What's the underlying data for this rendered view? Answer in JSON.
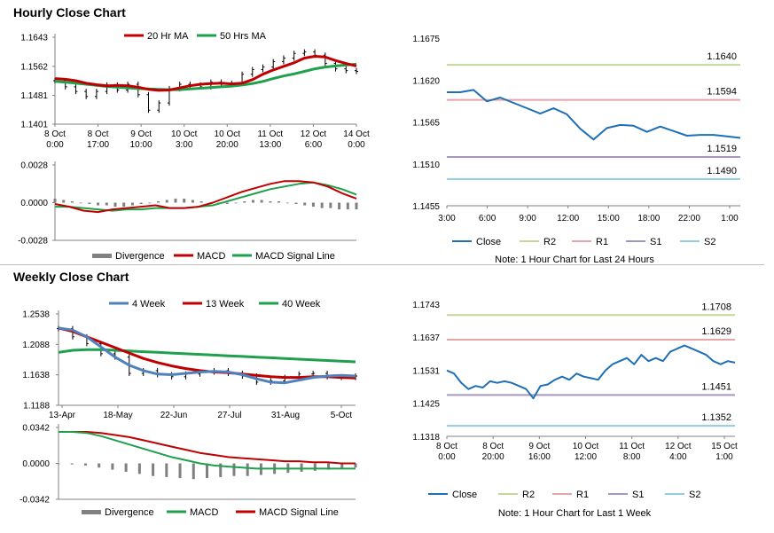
{
  "titles": {
    "hourly": "Hourly Close Chart",
    "weekly": "Weekly Close Chart"
  },
  "colors": {
    "red": "#c00000",
    "green": "#1ea04c",
    "blue": "#4f81bd",
    "close": "#1f6fb4",
    "r2": "#c4d79b",
    "r1": "#e6a5a8",
    "s1": "#a795c2",
    "s2": "#93cddd",
    "divergence": "#808080"
  },
  "chart_data": [
    {
      "id": "hourly-price",
      "type": "line",
      "x_tick_labels": [
        [
          "8 Oct",
          "0:00"
        ],
        [
          "8 Oct",
          "17:00"
        ],
        [
          "9 Oct",
          "10:00"
        ],
        [
          "10 Oct",
          "3:00"
        ],
        [
          "10 Oct",
          "20:00"
        ],
        [
          "11 Oct",
          "13:00"
        ],
        [
          "12 Oct",
          "6:00"
        ],
        [
          "14 Oct",
          "0:00"
        ]
      ],
      "y_tick_labels": [
        "1.1643",
        "1.1562",
        "1.1481",
        "1.1401"
      ],
      "ylim": [
        1.1401,
        1.1643
      ],
      "series": [
        {
          "name": "20 Hr MA",
          "color": "red",
          "values": [
            1.1528,
            1.1526,
            1.1522,
            1.1515,
            1.1511,
            1.1508,
            1.1509,
            1.1508,
            1.1504,
            1.1498,
            1.1495,
            1.1496,
            1.1502,
            1.1508,
            1.1512,
            1.1514,
            1.1515,
            1.1513,
            1.1515,
            1.1525,
            1.154,
            1.1552,
            1.1562,
            1.1572,
            1.1585,
            1.159,
            1.1588,
            1.1578,
            1.157,
            1.1563
          ]
        },
        {
          "name": "50 Hrs MA",
          "color": "green",
          "values": [
            1.152,
            1.1518,
            1.1515,
            1.1512,
            1.1509,
            1.1506,
            1.1504,
            1.1502,
            1.15,
            1.1499,
            1.1498,
            1.1497,
            1.1497,
            1.1499,
            1.1501,
            1.1503,
            1.1505,
            1.1507,
            1.151,
            1.1514,
            1.152,
            1.1528,
            1.1535,
            1.1541,
            1.1548,
            1.1555,
            1.156,
            1.1563,
            1.1566,
            1.1568
          ]
        },
        {
          "name": "Close",
          "type": "ohlc",
          "values": [
            1.1522,
            1.1505,
            1.1492,
            1.1478,
            1.1492,
            1.151,
            1.1496,
            1.1512,
            1.1483,
            1.144,
            1.146,
            1.15,
            1.1512,
            1.151,
            1.1505,
            1.1518,
            1.1512,
            1.1515,
            1.154,
            1.1553,
            1.156,
            1.1575,
            1.1585,
            1.1598,
            1.1602,
            1.1593,
            1.157,
            1.1555,
            1.155,
            1.1548
          ]
        }
      ]
    },
    {
      "id": "hourly-macd",
      "type": "line",
      "y_tick_labels": [
        "0.0028",
        "0.0000",
        "-0.0028"
      ],
      "ylim": [
        -0.0028,
        0.0028
      ],
      "series": [
        {
          "name": "Divergence",
          "color": "divergence",
          "type": "bar",
          "values": [
            0.0003,
            0.0002,
            0.0001,
            0.0,
            -0.0001,
            -0.0002,
            -0.0002,
            -0.0003,
            -0.0003,
            -0.0002,
            -0.0001,
            0.0,
            0.0001,
            0.0002,
            0.0003,
            0.0003,
            0.0002,
            0.0001,
            0.0,
            -0.0001,
            -0.0001,
            0.0,
            0.0001,
            0.0002,
            0.0002,
            0.0001,
            0.0001,
            0.0,
            -0.0001,
            -0.0002,
            -0.0003,
            -0.0004,
            -0.0004,
            -0.0005,
            -0.0005,
            -0.0005
          ]
        },
        {
          "name": "MACD",
          "color": "red",
          "values": [
            -0.0001,
            -0.0003,
            -0.0006,
            -0.0007,
            -0.0005,
            -0.0004,
            -0.0003,
            -0.0002,
            -0.0004,
            -0.0004,
            -0.0003,
            0.0,
            0.0004,
            0.0008,
            0.0011,
            0.0014,
            0.0016,
            0.0016,
            0.0015,
            0.0012,
            0.0007,
            0.0003
          ]
        },
        {
          "name": "MACD Signal Line",
          "color": "green",
          "values": [
            -0.0003,
            -0.0003,
            -0.0004,
            -0.0005,
            -0.0006,
            -0.0005,
            -0.0005,
            -0.0004,
            -0.0004,
            -0.0004,
            -0.0003,
            -0.0002,
            0.0001,
            0.0004,
            0.0007,
            0.001,
            0.0012,
            0.0014,
            0.0015,
            0.0013,
            0.001,
            0.0006
          ]
        }
      ]
    },
    {
      "id": "hourly-levels",
      "type": "line",
      "x_tick_labels": [
        "3:00",
        "6:00",
        "9:00",
        "12:00",
        "15:00",
        "18:00",
        "22:00",
        "1:00"
      ],
      "y_tick_labels": [
        "1.1675",
        "1.1620",
        "1.1565",
        "1.1510",
        "1.1455"
      ],
      "ylim": [
        1.1455,
        1.1675
      ],
      "levels": [
        {
          "name": "R2",
          "value": 1.164,
          "label": "1.1640",
          "color": "r2"
        },
        {
          "name": "R1",
          "value": 1.1594,
          "label": "1.1594",
          "color": "r1"
        },
        {
          "name": "S1",
          "value": 1.1519,
          "label": "1.1519",
          "color": "s1"
        },
        {
          "name": "S2",
          "value": 1.149,
          "label": "1.1490",
          "color": "s2"
        }
      ],
      "series": [
        {
          "name": "Close",
          "color": "close",
          "values": [
            1.1604,
            1.1604,
            1.1607,
            1.1592,
            1.1597,
            1.159,
            1.1583,
            1.1576,
            1.1583,
            1.1575,
            1.1556,
            1.1542,
            1.1557,
            1.1561,
            1.156,
            1.1552,
            1.1559,
            1.1553,
            1.1547,
            1.1548,
            1.1548,
            1.1546,
            1.1544
          ]
        }
      ],
      "note": "Note: 1 Hour Chart for Last 24 Hours"
    },
    {
      "id": "weekly-price",
      "type": "line",
      "x_tick_labels": [
        "13-Apr",
        "18-May",
        "22-Jun",
        "27-Jul",
        "31-Aug",
        "5-Oct"
      ],
      "y_tick_labels": [
        "1.2538",
        "1.2088",
        "1.1638",
        "1.1188"
      ],
      "ylim": [
        1.1188,
        1.2538
      ],
      "series": [
        {
          "name": "4 Week",
          "color": "blue",
          "values": [
            1.233,
            1.23,
            1.22,
            1.205,
            1.19,
            1.178,
            1.17,
            1.165,
            1.164,
            1.166,
            1.168,
            1.169,
            1.168,
            1.164,
            1.158,
            1.153,
            1.152,
            1.156,
            1.16,
            1.162,
            1.163,
            1.162
          ]
        },
        {
          "name": "13 Week",
          "color": "red",
          "values": [
            1.233,
            1.228,
            1.22,
            1.212,
            1.204,
            1.196,
            1.188,
            1.182,
            1.177,
            1.173,
            1.17,
            1.168,
            1.167,
            1.165,
            1.163,
            1.161,
            1.16,
            1.16,
            1.161,
            1.161,
            1.16,
            1.159
          ]
        },
        {
          "name": "40 Week",
          "color": "green",
          "values": [
            1.197,
            1.2,
            1.201,
            1.201,
            1.2,
            1.199,
            1.198,
            1.197,
            1.196,
            1.195,
            1.194,
            1.193,
            1.192,
            1.191,
            1.19,
            1.189,
            1.188,
            1.187,
            1.186,
            1.185,
            1.184,
            1.183
          ]
        },
        {
          "name": "Close",
          "type": "ohlc",
          "values": [
            1.232,
            1.22,
            1.21,
            1.195,
            1.19,
            1.166,
            1.17,
            1.164,
            1.161,
            1.165,
            1.168,
            1.17,
            1.166,
            1.162,
            1.153,
            1.155,
            1.16,
            1.165,
            1.166,
            1.161,
            1.16,
            1.162
          ]
        }
      ]
    },
    {
      "id": "weekly-macd",
      "type": "line",
      "y_tick_labels": [
        "0.0342",
        "0.0000",
        "-0.0342"
      ],
      "ylim": [
        -0.0342,
        0.0342
      ],
      "series": [
        {
          "name": "Divergence",
          "color": "divergence",
          "type": "bar",
          "values": [
            0.0,
            -0.001,
            -0.002,
            -0.004,
            -0.006,
            -0.008,
            -0.01,
            -0.012,
            -0.013,
            -0.014,
            -0.015,
            -0.014,
            -0.013,
            -0.012,
            -0.012,
            -0.011,
            -0.01,
            -0.009,
            -0.008,
            -0.007,
            -0.006,
            -0.005,
            -0.004
          ]
        },
        {
          "name": "MACD",
          "color": "green",
          "values": [
            0.03,
            0.03,
            0.029,
            0.026,
            0.022,
            0.018,
            0.014,
            0.01,
            0.006,
            0.003,
            0.0,
            -0.002,
            -0.003,
            -0.004,
            -0.005,
            -0.005,
            -0.005,
            -0.005,
            -0.005,
            -0.005,
            -0.005,
            -0.005
          ]
        },
        {
          "name": "MACD Signal Line",
          "color": "red",
          "values": [
            0.03,
            0.03,
            0.03,
            0.029,
            0.027,
            0.025,
            0.022,
            0.019,
            0.016,
            0.013,
            0.01,
            0.008,
            0.006,
            0.005,
            0.004,
            0.003,
            0.002,
            0.002,
            0.001,
            0.001,
            0.0,
            0.0
          ]
        }
      ]
    },
    {
      "id": "weekly-levels",
      "type": "line",
      "x_tick_labels": [
        [
          "8 Oct",
          "0:00"
        ],
        [
          "8 Oct",
          "20:00"
        ],
        [
          "9 Oct",
          "16:00"
        ],
        [
          "10 Oct",
          "12:00"
        ],
        [
          "11 Oct",
          "8:00"
        ],
        [
          "12 Oct",
          "4:00"
        ],
        [
          "15 Oct",
          "1:00"
        ]
      ],
      "y_tick_labels": [
        "1.1743",
        "1.1637",
        "1.1531",
        "1.1425",
        "1.1318"
      ],
      "ylim": [
        1.1318,
        1.1743
      ],
      "levels": [
        {
          "name": "R2",
          "value": 1.1708,
          "label": "1.1708",
          "color": "r2"
        },
        {
          "name": "R1",
          "value": 1.1629,
          "label": "1.1629",
          "color": "r1"
        },
        {
          "name": "S1",
          "value": 1.1451,
          "label": "1.1451",
          "color": "s1"
        },
        {
          "name": "S2",
          "value": 1.1352,
          "label": "1.1352",
          "color": "s2"
        }
      ],
      "series": [
        {
          "name": "Close",
          "color": "close",
          "values": [
            1.153,
            1.152,
            1.149,
            1.147,
            1.148,
            1.1475,
            1.1495,
            1.149,
            1.1495,
            1.149,
            1.148,
            1.147,
            1.144,
            1.148,
            1.1485,
            1.15,
            1.151,
            1.15,
            1.152,
            1.151,
            1.1505,
            1.15,
            1.153,
            1.155,
            1.156,
            1.157,
            1.155,
            1.158,
            1.156,
            1.157,
            1.156,
            1.159,
            1.16,
            1.161,
            1.16,
            1.159,
            1.158,
            1.156,
            1.155,
            1.156,
            1.1555
          ]
        }
      ],
      "note": "Note: 1 Hour Chart for Last 1 Week"
    }
  ]
}
